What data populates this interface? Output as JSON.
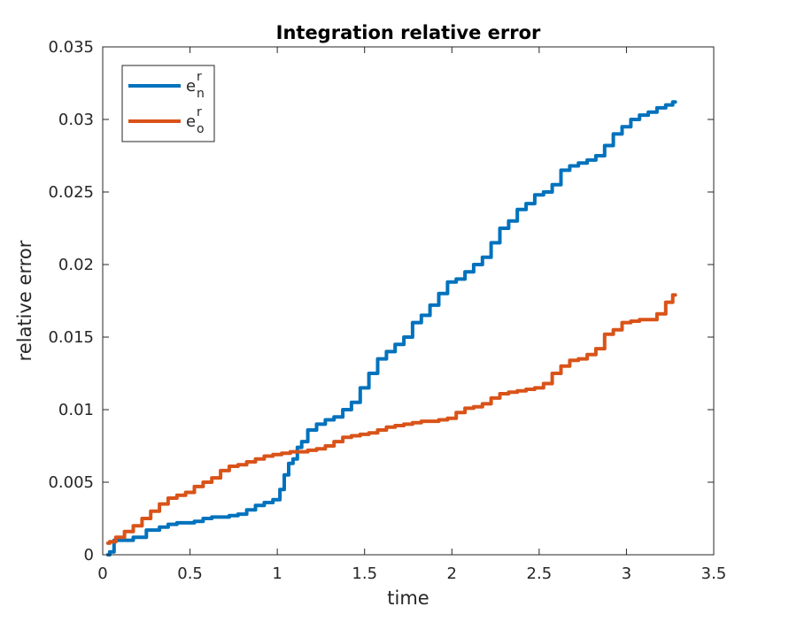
{
  "chart_data": {
    "type": "line",
    "title": "Integration relative error",
    "xlabel": "time",
    "ylabel": "relative error",
    "xlim": [
      0,
      3.5
    ],
    "ylim": [
      0,
      0.035
    ],
    "xticks": [
      0,
      0.5,
      1,
      1.5,
      2,
      2.5,
      3,
      3.5
    ],
    "xtick_labels": [
      "0",
      "0.5",
      "1",
      "1.5",
      "2",
      "2.5",
      "3",
      "3.5"
    ],
    "yticks": [
      0,
      0.005,
      0.01,
      0.015,
      0.02,
      0.025,
      0.03,
      0.035
    ],
    "ytick_labels": [
      "0",
      "0.005",
      "0.01",
      "0.015",
      "0.02",
      "0.025",
      "0.03",
      "0.035"
    ],
    "grid": false,
    "legend_position": "top-left",
    "series": [
      {
        "name": "e",
        "superscript": "r",
        "subscript": "n",
        "color": "#0072BD",
        "x": [
          0.03,
          0.05,
          0.08,
          0.15,
          0.2,
          0.3,
          0.35,
          0.4,
          0.45,
          0.5,
          0.55,
          0.6,
          0.65,
          0.7,
          0.75,
          0.8,
          0.85,
          0.9,
          0.95,
          1.0,
          1.03,
          1.05,
          1.08,
          1.1,
          1.13,
          1.15,
          1.2,
          1.25,
          1.3,
          1.35,
          1.4,
          1.45,
          1.5,
          1.55,
          1.6,
          1.65,
          1.7,
          1.75,
          1.8,
          1.85,
          1.9,
          1.95,
          2.0,
          2.05,
          2.1,
          2.15,
          2.2,
          2.25,
          2.3,
          2.35,
          2.4,
          2.45,
          2.5,
          2.55,
          2.6,
          2.65,
          2.7,
          2.75,
          2.8,
          2.85,
          2.9,
          2.95,
          3.0,
          3.05,
          3.1,
          3.15,
          3.2,
          3.25,
          3.28
        ],
        "y": [
          0.0,
          0.0002,
          0.001,
          0.001,
          0.0012,
          0.0017,
          0.0019,
          0.0021,
          0.0022,
          0.0022,
          0.0023,
          0.0025,
          0.0026,
          0.0026,
          0.0027,
          0.0028,
          0.0031,
          0.0034,
          0.0036,
          0.0038,
          0.0045,
          0.0055,
          0.0063,
          0.0066,
          0.0074,
          0.0078,
          0.0086,
          0.009,
          0.0093,
          0.0095,
          0.01,
          0.0105,
          0.0115,
          0.0125,
          0.0135,
          0.014,
          0.0145,
          0.015,
          0.016,
          0.0165,
          0.0172,
          0.018,
          0.0188,
          0.019,
          0.0195,
          0.02,
          0.0205,
          0.0215,
          0.0225,
          0.023,
          0.0238,
          0.0242,
          0.0248,
          0.025,
          0.0255,
          0.0265,
          0.0268,
          0.027,
          0.0272,
          0.0275,
          0.0282,
          0.029,
          0.0295,
          0.03,
          0.0303,
          0.0305,
          0.0308,
          0.031,
          0.0312
        ]
      },
      {
        "name": "e",
        "superscript": "r",
        "subscript": "o",
        "color": "#D95319",
        "x": [
          0.03,
          0.05,
          0.1,
          0.15,
          0.2,
          0.25,
          0.3,
          0.35,
          0.4,
          0.45,
          0.5,
          0.55,
          0.6,
          0.65,
          0.7,
          0.75,
          0.8,
          0.85,
          0.9,
          0.95,
          1.0,
          1.05,
          1.1,
          1.15,
          1.2,
          1.25,
          1.3,
          1.35,
          1.4,
          1.45,
          1.5,
          1.55,
          1.6,
          1.65,
          1.7,
          1.75,
          1.8,
          1.85,
          1.9,
          1.95,
          2.0,
          2.05,
          2.1,
          2.15,
          2.2,
          2.25,
          2.3,
          2.35,
          2.4,
          2.45,
          2.5,
          2.55,
          2.6,
          2.65,
          2.7,
          2.75,
          2.8,
          2.85,
          2.9,
          2.95,
          3.0,
          3.05,
          3.1,
          3.15,
          3.2,
          3.25,
          3.28
        ],
        "y": [
          0.0008,
          0.0009,
          0.0012,
          0.0016,
          0.002,
          0.0025,
          0.003,
          0.0035,
          0.0039,
          0.0041,
          0.0043,
          0.0047,
          0.005,
          0.0053,
          0.0058,
          0.0061,
          0.0062,
          0.0064,
          0.0066,
          0.0068,
          0.0069,
          0.007,
          0.0071,
          0.0071,
          0.0072,
          0.0073,
          0.0075,
          0.0078,
          0.0081,
          0.0082,
          0.0083,
          0.0084,
          0.0086,
          0.0088,
          0.0089,
          0.009,
          0.0091,
          0.0092,
          0.0092,
          0.0093,
          0.0094,
          0.0098,
          0.0101,
          0.0102,
          0.0104,
          0.0108,
          0.0111,
          0.0112,
          0.0113,
          0.0114,
          0.0115,
          0.0118,
          0.0125,
          0.013,
          0.0134,
          0.0135,
          0.0138,
          0.0142,
          0.0152,
          0.0155,
          0.016,
          0.0161,
          0.0162,
          0.0162,
          0.0166,
          0.0174,
          0.0179
        ]
      }
    ]
  }
}
